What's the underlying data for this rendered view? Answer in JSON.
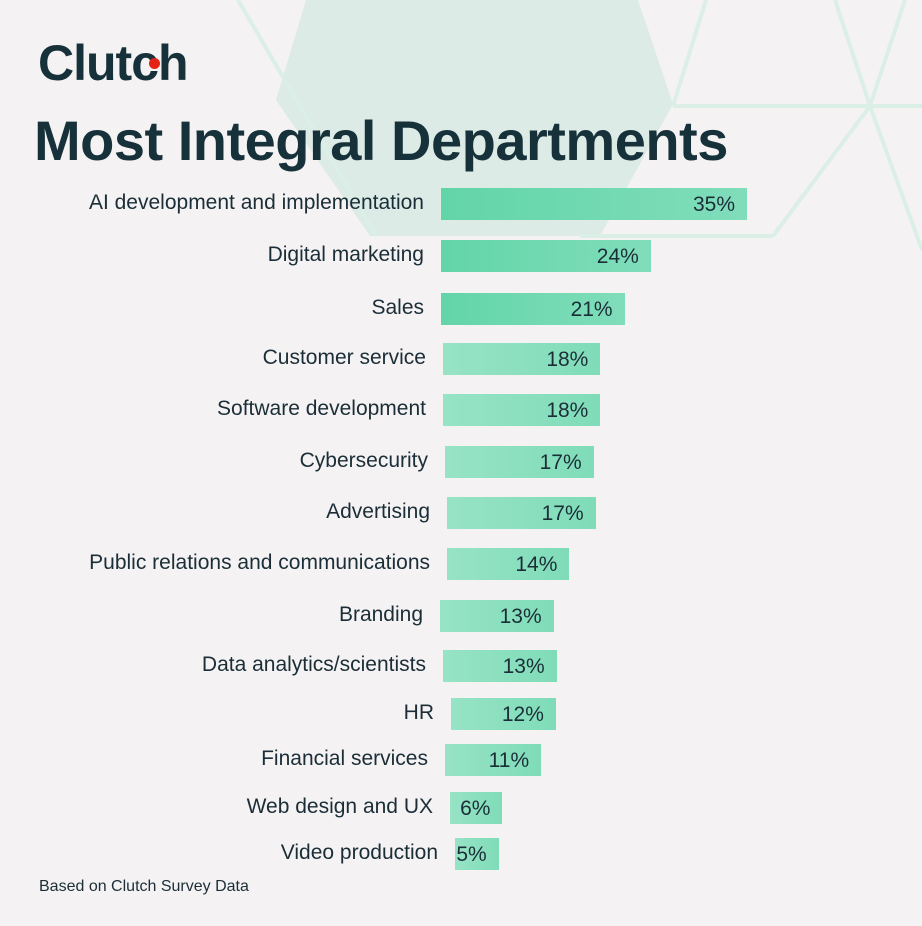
{
  "logo": "Clutch",
  "chart_data": {
    "type": "bar",
    "orientation": "horizontal",
    "title": "Most Integral Departments",
    "categories": [
      "AI development and implementation",
      "Digital marketing",
      "Sales",
      "Customer service",
      "Software development",
      "Cybersecurity",
      "Advertising",
      "Public relations and communications",
      "Branding",
      "Data analytics/scientists",
      "HR",
      "Financial services",
      "Web design and UX",
      "Video production"
    ],
    "values": [
      35,
      24,
      21,
      18,
      18,
      17,
      17,
      14,
      13,
      13,
      12,
      11,
      6,
      5
    ],
    "labels": [
      "35%",
      "24%",
      "21%",
      "18%",
      "18%",
      "17%",
      "17%",
      "14%",
      "13%",
      "13%",
      "12%",
      "11%",
      "6%",
      "5%"
    ],
    "unit": "%",
    "colors": {
      "top3": "#62d5a8",
      "rest": "#97e3c6"
    },
    "grid": false
  },
  "footer": "Based on Clutch Survey Data"
}
